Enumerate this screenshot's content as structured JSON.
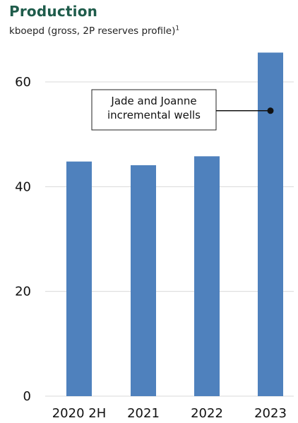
{
  "chart_data": {
    "type": "bar",
    "title": "Production",
    "subtitle": "kboepd (gross, 2P reserves profile)",
    "subtitle_footnote": "1",
    "categories": [
      "2020 2H",
      "2021",
      "2022",
      "2023"
    ],
    "values": [
      44.8,
      44.1,
      45.8,
      65.6
    ],
    "ylim": [
      0,
      65
    ],
    "yticks": [
      0,
      20,
      40,
      60
    ],
    "grid": true,
    "bar_color": "#4f81bd",
    "grid_color": "#d9d9d9",
    "title_color": "#1f5c4b",
    "annotation": {
      "lines": [
        "Jade and Joanne",
        "incremental wells"
      ],
      "category": "2023",
      "value": 54.5
    }
  }
}
